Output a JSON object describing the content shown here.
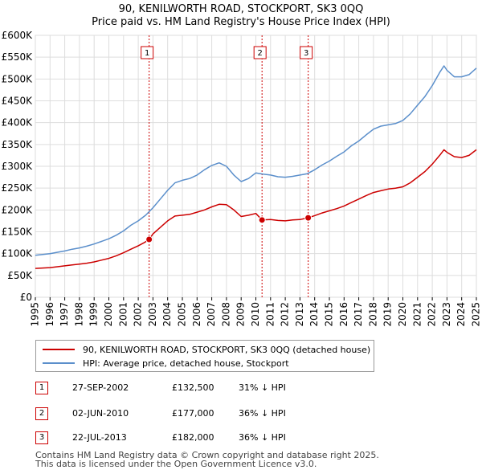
{
  "title_line1": "90, KENILWORTH ROAD, STOCKPORT, SK3 0QQ",
  "title_line2": "Price paid vs. HM Land Registry's House Price Index (HPI)",
  "chart_data": {
    "type": "line",
    "title": "90, KENILWORTH ROAD, STOCKPORT, SK3 0QQ — Price paid vs. HM Land Registry's House Price Index (HPI)",
    "xlim": [
      1995,
      2025
    ],
    "ylim": [
      0,
      600000
    ],
    "y_ticks": [
      0,
      50000,
      100000,
      150000,
      200000,
      250000,
      300000,
      350000,
      400000,
      450000,
      500000,
      550000,
      600000
    ],
    "y_tick_labels": [
      "£0",
      "£50K",
      "£100K",
      "£150K",
      "£200K",
      "£250K",
      "£300K",
      "£350K",
      "£400K",
      "£450K",
      "£500K",
      "£550K",
      "£600K"
    ],
    "x_ticks": [
      1995,
      1996,
      1997,
      1998,
      1999,
      2000,
      2001,
      2002,
      2003,
      2004,
      2005,
      2006,
      2007,
      2008,
      2009,
      2010,
      2011,
      2012,
      2013,
      2014,
      2015,
      2016,
      2017,
      2018,
      2019,
      2020,
      2021,
      2022,
      2023,
      2024,
      2025
    ],
    "x_tick_labels": [
      "1995",
      "1996",
      "1997",
      "1998",
      "1999",
      "2000",
      "2001",
      "2002",
      "2003",
      "2004",
      "2005",
      "2006",
      "2007",
      "2008",
      "2009",
      "2010",
      "2011",
      "2012",
      "2013",
      "2014",
      "2015",
      "2016",
      "2017",
      "2018",
      "2019",
      "2020",
      "2021",
      "2022",
      "2023",
      "2024",
      "2025"
    ],
    "grid": true,
    "colors": {
      "property": "#cc0000",
      "hpi": "#5b8fcb",
      "grid": "#dddddd",
      "marker_line": "#cc0000"
    },
    "series": [
      {
        "name": "90, KENILWORTH ROAD, STOCKPORT, SK3 0QQ (detached house)",
        "key": "property",
        "points": [
          [
            1995.0,
            66000
          ],
          [
            1995.5,
            67000
          ],
          [
            1996.0,
            68000
          ],
          [
            1996.5,
            70000
          ],
          [
            1997.0,
            72000
          ],
          [
            1997.5,
            74000
          ],
          [
            1998.0,
            76000
          ],
          [
            1998.5,
            78000
          ],
          [
            1999.0,
            81000
          ],
          [
            1999.5,
            85000
          ],
          [
            2000.0,
            89000
          ],
          [
            2000.5,
            95000
          ],
          [
            2001.0,
            102000
          ],
          [
            2001.5,
            110000
          ],
          [
            2002.0,
            118000
          ],
          [
            2002.4,
            125000
          ],
          [
            2002.74,
            132500
          ],
          [
            2003.0,
            145000
          ],
          [
            2003.5,
            160000
          ],
          [
            2004.0,
            175000
          ],
          [
            2004.5,
            186000
          ],
          [
            2005.0,
            188000
          ],
          [
            2005.5,
            190000
          ],
          [
            2006.0,
            195000
          ],
          [
            2006.5,
            200000
          ],
          [
            2007.0,
            207000
          ],
          [
            2007.5,
            213000
          ],
          [
            2008.0,
            212000
          ],
          [
            2008.5,
            200000
          ],
          [
            2009.0,
            185000
          ],
          [
            2009.5,
            188000
          ],
          [
            2010.0,
            192000
          ],
          [
            2010.42,
            177000
          ],
          [
            2011.0,
            178000
          ],
          [
            2011.5,
            176000
          ],
          [
            2012.0,
            175000
          ],
          [
            2012.5,
            177000
          ],
          [
            2013.0,
            178000
          ],
          [
            2013.56,
            182000
          ],
          [
            2014.0,
            187000
          ],
          [
            2014.5,
            193000
          ],
          [
            2015.0,
            198000
          ],
          [
            2015.5,
            203000
          ],
          [
            2016.0,
            209000
          ],
          [
            2016.5,
            217000
          ],
          [
            2017.0,
            225000
          ],
          [
            2017.5,
            233000
          ],
          [
            2018.0,
            240000
          ],
          [
            2018.5,
            244000
          ],
          [
            2019.0,
            248000
          ],
          [
            2019.5,
            250000
          ],
          [
            2020.0,
            253000
          ],
          [
            2020.5,
            262000
          ],
          [
            2021.0,
            275000
          ],
          [
            2021.5,
            288000
          ],
          [
            2022.0,
            305000
          ],
          [
            2022.5,
            325000
          ],
          [
            2022.8,
            338000
          ],
          [
            2023.0,
            332000
          ],
          [
            2023.5,
            322000
          ],
          [
            2024.0,
            320000
          ],
          [
            2024.5,
            325000
          ],
          [
            2025.0,
            338000
          ]
        ]
      },
      {
        "name": "HPI: Average price, detached house, Stockport",
        "key": "hpi",
        "points": [
          [
            1995.0,
            96000
          ],
          [
            1995.5,
            98000
          ],
          [
            1996.0,
            100000
          ],
          [
            1996.5,
            103000
          ],
          [
            1997.0,
            106000
          ],
          [
            1997.5,
            110000
          ],
          [
            1998.0,
            113000
          ],
          [
            1998.5,
            117000
          ],
          [
            1999.0,
            122000
          ],
          [
            1999.5,
            128000
          ],
          [
            2000.0,
            134000
          ],
          [
            2000.5,
            142000
          ],
          [
            2001.0,
            152000
          ],
          [
            2001.5,
            165000
          ],
          [
            2002.0,
            175000
          ],
          [
            2002.5,
            188000
          ],
          [
            2003.0,
            205000
          ],
          [
            2003.5,
            225000
          ],
          [
            2004.0,
            245000
          ],
          [
            2004.5,
            262000
          ],
          [
            2005.0,
            268000
          ],
          [
            2005.5,
            272000
          ],
          [
            2006.0,
            280000
          ],
          [
            2006.5,
            292000
          ],
          [
            2007.0,
            302000
          ],
          [
            2007.5,
            308000
          ],
          [
            2008.0,
            300000
          ],
          [
            2008.5,
            280000
          ],
          [
            2009.0,
            265000
          ],
          [
            2009.5,
            272000
          ],
          [
            2010.0,
            285000
          ],
          [
            2010.5,
            282000
          ],
          [
            2011.0,
            280000
          ],
          [
            2011.5,
            276000
          ],
          [
            2012.0,
            275000
          ],
          [
            2012.5,
            277000
          ],
          [
            2013.0,
            280000
          ],
          [
            2013.5,
            283000
          ],
          [
            2014.0,
            292000
          ],
          [
            2014.5,
            303000
          ],
          [
            2015.0,
            312000
          ],
          [
            2015.5,
            323000
          ],
          [
            2016.0,
            333000
          ],
          [
            2016.5,
            347000
          ],
          [
            2017.0,
            358000
          ],
          [
            2017.5,
            372000
          ],
          [
            2018.0,
            385000
          ],
          [
            2018.5,
            392000
          ],
          [
            2019.0,
            395000
          ],
          [
            2019.5,
            398000
          ],
          [
            2020.0,
            405000
          ],
          [
            2020.5,
            420000
          ],
          [
            2021.0,
            440000
          ],
          [
            2021.5,
            460000
          ],
          [
            2022.0,
            485000
          ],
          [
            2022.5,
            515000
          ],
          [
            2022.8,
            530000
          ],
          [
            2023.0,
            520000
          ],
          [
            2023.5,
            505000
          ],
          [
            2024.0,
            505000
          ],
          [
            2024.5,
            510000
          ],
          [
            2025.0,
            525000
          ]
        ]
      }
    ],
    "sale_markers": [
      {
        "label": "1",
        "x": 2002.74,
        "y": 132500
      },
      {
        "label": "2",
        "x": 2010.42,
        "y": 177000
      },
      {
        "label": "3",
        "x": 2013.56,
        "y": 182000
      }
    ]
  },
  "legend": {
    "property_label": "90, KENILWORTH ROAD, STOCKPORT, SK3 0QQ (detached house)",
    "hpi_label": "HPI: Average price, detached house, Stockport"
  },
  "sales": [
    {
      "num": "1",
      "date": "27-SEP-2002",
      "price": "£132,500",
      "hpi": "31% ↓ HPI"
    },
    {
      "num": "2",
      "date": "02-JUN-2010",
      "price": "£177,000",
      "hpi": "36% ↓ HPI"
    },
    {
      "num": "3",
      "date": "22-JUL-2013",
      "price": "£182,000",
      "hpi": "36% ↓ HPI"
    }
  ],
  "footer": {
    "line1": "Contains HM Land Registry data © Crown copyright and database right 2025.",
    "line2": "This data is licensed under the Open Government Licence v3.0."
  }
}
